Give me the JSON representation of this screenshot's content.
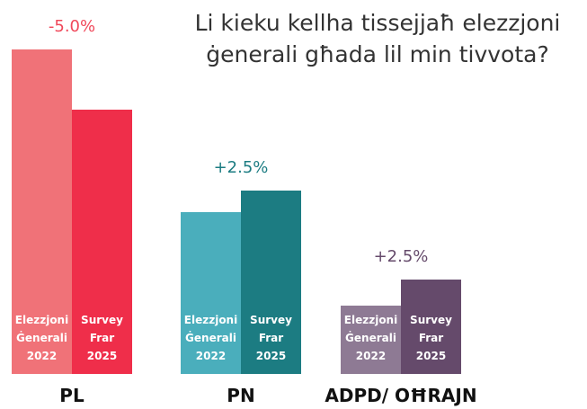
{
  "chart_data": {
    "type": "bar",
    "title": "Li kieku kellha tissejjaħ elezzjoni ġenerali għada lil min tivvota?",
    "categories": [
      "PL",
      "PN",
      "ADPD/ OĦRAJN"
    ],
    "change_labels": [
      "-5.0%",
      "+2.5%",
      "+2.5%"
    ],
    "change_colors": [
      "#f0485a",
      "#1c7c82",
      "#654a6b"
    ],
    "series": [
      {
        "name": "Elezzjoni Ġenerali 2022",
        "colors": [
          "#f07278",
          "#4aaebc",
          "#8e7a94"
        ],
        "values": [
          55,
          27.4,
          11.6
        ]
      },
      {
        "name": "Survey Frar 2025",
        "colors": [
          "#ef2e4a",
          "#1c7c82",
          "#654a6b"
        ],
        "values": [
          44.8,
          31.1,
          16.0
        ]
      }
    ]
  }
}
